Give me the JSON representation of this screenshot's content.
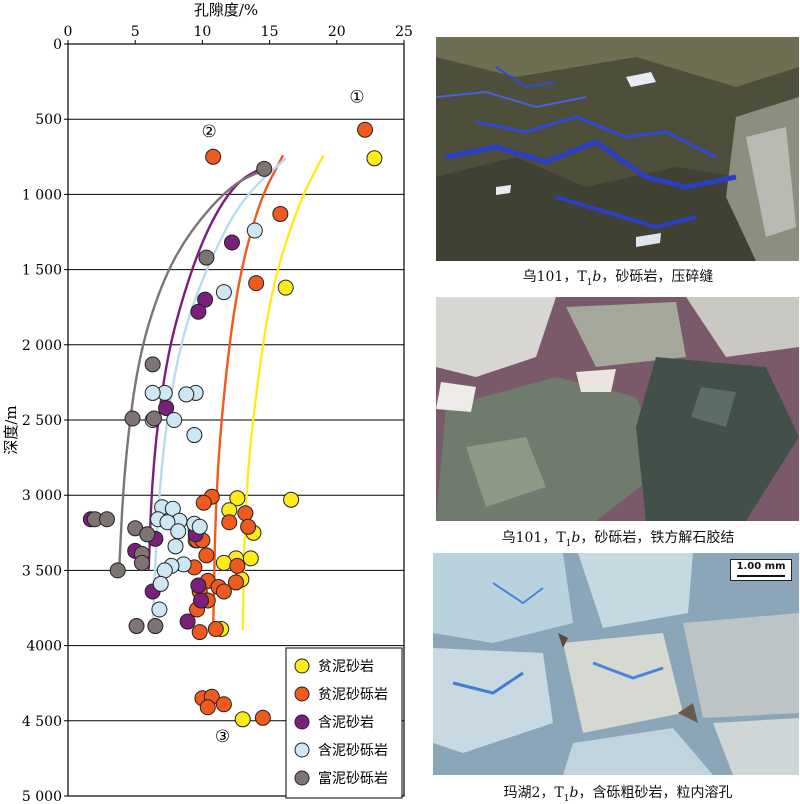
{
  "chart_data": {
    "type": "scatter",
    "xlabel": "孔隙度/%",
    "ylabel": "深度/m",
    "xlim": [
      0,
      25
    ],
    "ylim": [
      0,
      5000
    ],
    "x_ticks": [
      "0",
      "5",
      "10",
      "15",
      "20",
      "25"
    ],
    "y_ticks": [
      "0",
      "500",
      "1 000",
      "1 500",
      "2 000",
      "2 500",
      "3 000",
      "3 500",
      "4000",
      "4 500",
      "5 000"
    ],
    "grid": "horizontal",
    "legend_position": "bottom-right",
    "annotations": [
      {
        "text": "①",
        "x": 21.5,
        "y": 390
      },
      {
        "text": "②",
        "x": 10.5,
        "y": 620
      },
      {
        "text": "③",
        "x": 11.5,
        "y": 4640
      }
    ],
    "series": [
      {
        "name": "贫泥砂岩",
        "color": "#ffeb1a",
        "curve": [
          [
            13.0,
            3900
          ],
          [
            13.2,
            3000
          ],
          [
            14.0,
            2300
          ],
          [
            15.2,
            1600
          ],
          [
            17.2,
            1050
          ],
          [
            19.0,
            740
          ]
        ],
        "points": [
          [
            22.8,
            760
          ],
          [
            16.2,
            1620
          ],
          [
            16.6,
            3030
          ],
          [
            12.6,
            3020
          ],
          [
            12.0,
            3100
          ],
          [
            13.8,
            3250
          ],
          [
            9.5,
            3300
          ],
          [
            13.6,
            3420
          ],
          [
            12.5,
            3420
          ],
          [
            11.6,
            3450
          ],
          [
            12.9,
            3560
          ],
          [
            11.4,
            3890
          ],
          [
            13.0,
            4490
          ]
        ]
      },
      {
        "name": "贫泥砂砾岩",
        "color": "#f05a1e",
        "curve": [
          [
            10.8,
            3900
          ],
          [
            11.0,
            3000
          ],
          [
            11.6,
            2300
          ],
          [
            12.6,
            1600
          ],
          [
            14.2,
            1050
          ],
          [
            16.0,
            740
          ]
        ],
        "points": [
          [
            22.1,
            570
          ],
          [
            10.8,
            750
          ],
          [
            15.8,
            1130
          ],
          [
            14.0,
            1590
          ],
          [
            10.7,
            3010
          ],
          [
            10.1,
            3050
          ],
          [
            13.2,
            3120
          ],
          [
            12.0,
            3180
          ],
          [
            13.4,
            3210
          ],
          [
            9.5,
            3230
          ],
          [
            9.6,
            3300
          ],
          [
            10.0,
            3300
          ],
          [
            10.3,
            3400
          ],
          [
            12.6,
            3470
          ],
          [
            9.4,
            3480
          ],
          [
            10.4,
            3570
          ],
          [
            11.2,
            3610
          ],
          [
            12.5,
            3580
          ],
          [
            11.6,
            3640
          ],
          [
            9.8,
            3640
          ],
          [
            10.4,
            3700
          ],
          [
            9.6,
            3760
          ],
          [
            11.0,
            3890
          ],
          [
            9.8,
            3910
          ],
          [
            10.0,
            4350
          ],
          [
            10.7,
            4340
          ],
          [
            11.6,
            4390
          ],
          [
            10.4,
            4410
          ],
          [
            14.5,
            4480
          ]
        ]
      },
      {
        "name": "含泥砂岩",
        "color": "#7b1f7c",
        "curve": [
          [
            6.0,
            3500
          ],
          [
            6.3,
            2800
          ],
          [
            7.3,
            2100
          ],
          [
            8.8,
            1600
          ],
          [
            10.5,
            1200
          ],
          [
            12.5,
            920
          ],
          [
            14.5,
            820
          ]
        ],
        "points": [
          [
            12.2,
            1320
          ],
          [
            10.2,
            1700
          ],
          [
            9.7,
            1780
          ],
          [
            7.3,
            2420
          ],
          [
            1.7,
            3160
          ],
          [
            5.0,
            3370
          ],
          [
            9.5,
            3260
          ],
          [
            6.5,
            3290
          ],
          [
            9.7,
            3600
          ],
          [
            6.3,
            3640
          ],
          [
            9.9,
            3700
          ],
          [
            8.9,
            3840
          ]
        ]
      },
      {
        "name": "含泥砂砾岩",
        "color": "#cde7f4",
        "curve": [
          [
            6.3,
            3900
          ],
          [
            6.6,
            3200
          ],
          [
            7.3,
            2500
          ],
          [
            8.6,
            1900
          ],
          [
            10.5,
            1450
          ],
          [
            12.9,
            1030
          ],
          [
            16.2,
            760
          ]
        ],
        "points": [
          [
            13.9,
            1240
          ],
          [
            11.6,
            1650
          ],
          [
            7.2,
            2320
          ],
          [
            9.5,
            2320
          ],
          [
            6.3,
            2320
          ],
          [
            8.8,
            2330
          ],
          [
            6.3,
            2500
          ],
          [
            7.9,
            2500
          ],
          [
            9.4,
            2600
          ],
          [
            7.0,
            3080
          ],
          [
            7.8,
            3090
          ],
          [
            6.7,
            3160
          ],
          [
            8.3,
            3170
          ],
          [
            7.4,
            3180
          ],
          [
            9.4,
            3190
          ],
          [
            9.8,
            3210
          ],
          [
            8.2,
            3240
          ],
          [
            8.0,
            3340
          ],
          [
            8.6,
            3460
          ],
          [
            7.7,
            3470
          ],
          [
            7.2,
            3500
          ],
          [
            6.9,
            3590
          ],
          [
            6.8,
            3760
          ]
        ]
      },
      {
        "name": "富泥砂砾岩",
        "color": "#7e7474",
        "curve": [
          [
            3.8,
            3500
          ],
          [
            4.2,
            2800
          ],
          [
            5.2,
            2100
          ],
          [
            6.9,
            1600
          ],
          [
            9.0,
            1250
          ],
          [
            12.2,
            930
          ],
          [
            14.8,
            830
          ]
        ],
        "points": [
          [
            14.6,
            830
          ],
          [
            10.3,
            1420
          ],
          [
            6.3,
            2130
          ],
          [
            4.8,
            2490
          ],
          [
            6.4,
            2490
          ],
          [
            2.0,
            3160
          ],
          [
            2.9,
            3160
          ],
          [
            5.0,
            3220
          ],
          [
            5.9,
            3260
          ],
          [
            5.5,
            3390
          ],
          [
            5.5,
            3450
          ],
          [
            3.7,
            3500
          ],
          [
            5.1,
            3870
          ],
          [
            6.5,
            3870
          ]
        ]
      }
    ]
  },
  "photos": [
    {
      "caption_a": "乌101，T",
      "caption_sub": "1",
      "caption_b": "b",
      "caption_c": "，砂砾岩，压碎缝"
    },
    {
      "caption_a": "乌101，T",
      "caption_sub": "1",
      "caption_b": "b",
      "caption_c": "，砂砾岩，铁方解石胶结"
    },
    {
      "caption_a": "玛湖2，T",
      "caption_sub": "1",
      "caption_b": "b",
      "caption_c": "，含砾粗砂岩，粒内溶孔",
      "scale": "1.00 mm"
    }
  ]
}
